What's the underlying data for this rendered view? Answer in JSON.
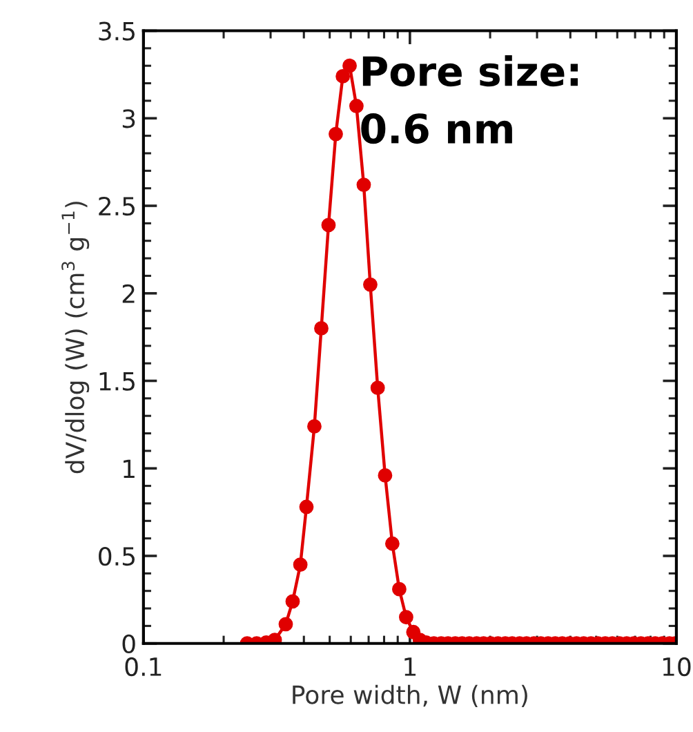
{
  "chart_data": {
    "type": "line",
    "xlabel": "Pore width, W (nm)",
    "ylabel": "dV/dlog (W) (cm$^{3}$ g$^{−1}$)",
    "annotations": [
      "Pore size:\n0.6 nm"
    ],
    "log": "x",
    "xlim": [
      0.1,
      10
    ],
    "xticks": [
      0.1,
      1,
      10
    ],
    "ylim": [
      0,
      3.5
    ],
    "yticks": [
      0,
      0.5,
      1,
      1.5,
      2,
      2.5,
      3,
      3.5
    ],
    "grid": false,
    "marker": "circle",
    "line_style": "solid",
    "series": [
      {
        "color": "#e00000",
        "x": [
          0.245,
          0.266,
          0.289,
          0.311,
          0.342,
          0.363,
          0.388,
          0.409,
          0.438,
          0.465,
          0.495,
          0.527,
          0.56,
          0.594,
          0.63,
          0.671,
          0.71,
          0.757,
          0.807,
          0.859,
          0.912,
          0.968,
          1.03,
          1.09,
          1.15,
          1.23,
          1.31,
          1.39,
          1.48,
          1.57,
          1.67,
          1.78,
          1.89,
          2.01,
          2.14,
          2.28,
          2.42,
          2.58,
          2.74,
          2.92,
          3.1,
          3.3,
          3.51,
          3.73,
          3.97,
          4.22,
          4.49,
          4.78,
          5.08,
          5.41,
          5.75,
          6.12,
          6.51,
          6.92,
          7.36,
          7.83,
          8.33,
          8.86,
          9.42,
          9.9
        ],
        "values": [
          0,
          0,
          0.005,
          0.02,
          0.11,
          0.24,
          0.45,
          0.78,
          1.24,
          1.8,
          2.39,
          2.91,
          3.24,
          3.3,
          3.07,
          2.62,
          2.05,
          1.46,
          0.96,
          0.57,
          0.31,
          0.15,
          0.065,
          0.02,
          0.005,
          0,
          0,
          0,
          0,
          0,
          0,
          0,
          0,
          0,
          0,
          0,
          0,
          0,
          0,
          0,
          0,
          0,
          0,
          0,
          0,
          0,
          0,
          0,
          0,
          0,
          0,
          0,
          0,
          0,
          0,
          0,
          0,
          0,
          0,
          0
        ]
      }
    ]
  }
}
